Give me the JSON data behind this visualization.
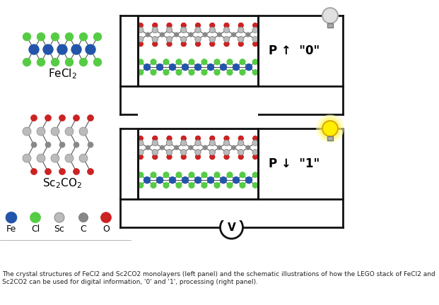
{
  "caption": "The crystal structures of FeCl2 and Sc2CO2 monolayers (left panel) and the schematic illustrations of how the LEGO stack of FeCl2 and Sc2CO2 can be used for digital information, '0' and '1', processing (right panel).",
  "legend_labels": [
    "Fe",
    "Cl",
    "Sc",
    "C",
    "O"
  ],
  "legend_colors": [
    "#2255aa",
    "#55cc44",
    "#bbbbbb",
    "#888888",
    "#cc2222"
  ],
  "fecl2_label": "FeCl$_2$",
  "sc2co2_label": "Sc$_2$CO$_2$",
  "p_up_label": "P ↑  \"0\"",
  "p_down_label": "P ↓  \"1\"",
  "v_label": "V",
  "fe_color": "#2255aa",
  "cl_color": "#55cc44",
  "sc_color": "#bbbbbb",
  "c_color": "#888888",
  "o_color": "#cc2222",
  "bond_color": "#555555",
  "wire_color": "#111111",
  "box_bg": "#ffffff",
  "fig_bg": "#ffffff",
  "caption_bg": "#e8e8e8"
}
